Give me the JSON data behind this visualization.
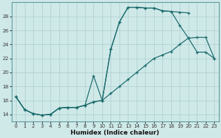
{
  "xlabel": "Humidex (Indice chaleur)",
  "background_color": "#cfe8e8",
  "grid_color": "#aacece",
  "line_color": "#1a6b6b",
  "xmin": -0.5,
  "xmax": 23.5,
  "ymin": 13.0,
  "ymax": 30.0,
  "yticks": [
    14,
    16,
    18,
    20,
    22,
    24,
    26,
    28
  ],
  "xticks": [
    0,
    1,
    2,
    3,
    4,
    5,
    6,
    7,
    8,
    9,
    10,
    11,
    12,
    13,
    14,
    15,
    16,
    17,
    18,
    19,
    20,
    21,
    22,
    23
  ],
  "curve_upper_x": [
    0,
    1,
    2,
    3,
    4,
    5,
    6,
    7,
    8,
    9,
    10,
    11,
    12,
    13,
    14,
    15,
    16,
    17,
    18,
    19,
    20
  ],
  "curve_upper_y": [
    16.5,
    14.7,
    14.1,
    13.9,
    14.0,
    14.9,
    15.0,
    15.0,
    15.3,
    15.8,
    16.0,
    23.3,
    27.2,
    29.3,
    29.3,
    29.2,
    29.2,
    28.8,
    28.7,
    28.6,
    28.5
  ],
  "curve_mid_x": [
    0,
    1,
    2,
    3,
    4,
    5,
    6,
    7,
    8,
    9,
    10,
    11,
    12,
    13,
    14,
    15,
    16,
    17,
    18,
    19,
    20,
    21,
    22,
    23
  ],
  "curve_mid_y": [
    16.5,
    14.7,
    14.1,
    13.9,
    14.0,
    14.9,
    15.0,
    15.0,
    15.3,
    19.5,
    16.0,
    23.3,
    27.2,
    29.3,
    29.3,
    29.2,
    29.2,
    28.8,
    28.7,
    26.7,
    24.9,
    22.9,
    22.9,
    22.0
  ],
  "curve_low_x": [
    0,
    1,
    2,
    3,
    4,
    5,
    6,
    7,
    8,
    9,
    10,
    11,
    12,
    13,
    14,
    15,
    16,
    17,
    18,
    19,
    20,
    21,
    22,
    23
  ],
  "curve_low_y": [
    16.5,
    14.7,
    14.1,
    13.9,
    14.0,
    14.9,
    15.0,
    15.0,
    15.3,
    15.8,
    16.0,
    17.0,
    18.0,
    19.0,
    20.0,
    21.0,
    22.0,
    22.5,
    23.0,
    24.0,
    24.9,
    25.0,
    25.0,
    22.0
  ]
}
